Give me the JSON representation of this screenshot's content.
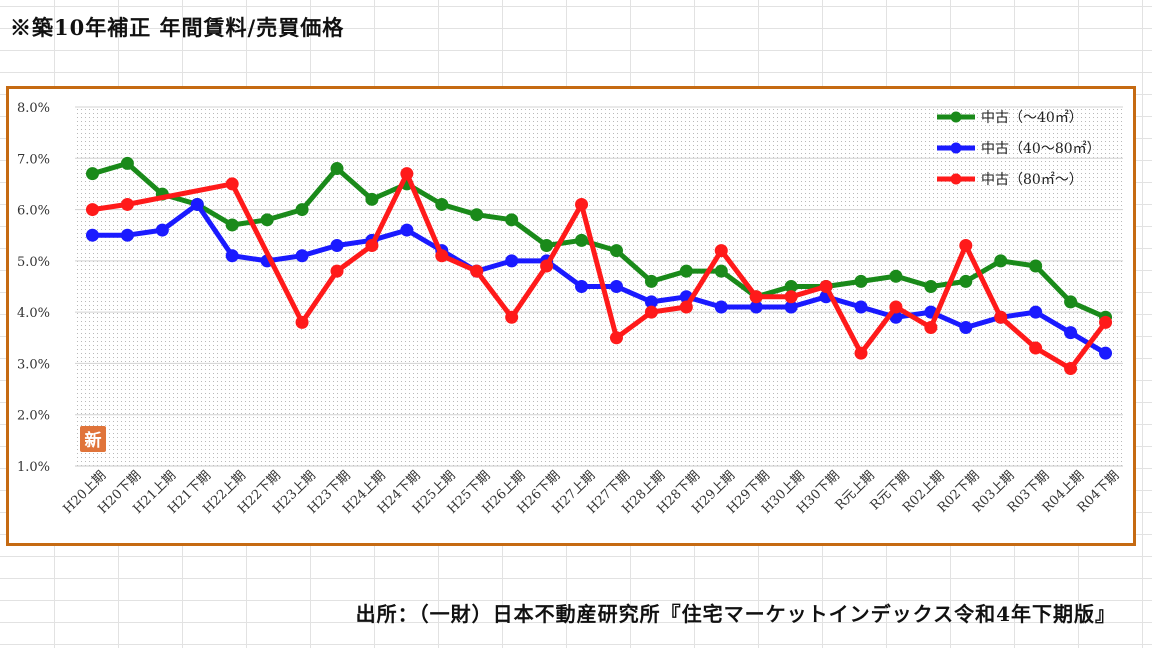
{
  "title": "※築10年補正 年間賃料/売買価格",
  "source": "出所：（一財）日本不動産研究所『住宅マーケットインデックス令和4年下期版』",
  "badge": {
    "text": "新",
    "color": "#e0743a"
  },
  "colors": {
    "frame": "#c56a12",
    "green": "#1a8a1a",
    "blue": "#1a1aff",
    "red": "#ff1a1a"
  },
  "chart_data": {
    "type": "line",
    "categories": [
      "H20上期",
      "H20下期",
      "H21上期",
      "H21下期",
      "H22上期",
      "H22下期",
      "H23上期",
      "H23下期",
      "H24上期",
      "H24下期",
      "H25上期",
      "H25下期",
      "H26上期",
      "H26下期",
      "H27上期",
      "H27下期",
      "H28上期",
      "H28下期",
      "H29上期",
      "H29下期",
      "H30上期",
      "H30下期",
      "R元上期",
      "R元下期",
      "R02上期",
      "R02下期",
      "R03上期",
      "R03下期",
      "R04上期",
      "R04下期"
    ],
    "series": [
      {
        "name": "中古（～40㎡）",
        "color": "#1a8a1a",
        "values": [
          6.7,
          6.9,
          6.3,
          6.1,
          5.7,
          5.8,
          6.0,
          6.8,
          6.2,
          6.5,
          6.1,
          5.9,
          5.8,
          5.3,
          5.4,
          5.2,
          4.6,
          4.8,
          4.8,
          4.3,
          4.5,
          4.5,
          4.6,
          4.7,
          4.5,
          4.6,
          5.0,
          4.9,
          4.2,
          3.9
        ]
      },
      {
        "name": "中古（40～80㎡）",
        "color": "#1a1aff",
        "values": [
          5.5,
          5.5,
          5.6,
          6.1,
          5.1,
          5.0,
          5.1,
          5.3,
          5.4,
          5.6,
          5.2,
          4.8,
          5.0,
          5.0,
          4.5,
          4.5,
          4.2,
          4.3,
          4.1,
          4.1,
          4.1,
          4.3,
          4.1,
          3.9,
          4.0,
          3.7,
          3.9,
          4.0,
          3.6,
          3.2
        ]
      },
      {
        "name": "中古（80㎡～）",
        "color": "#ff1a1a",
        "values": [
          6.0,
          6.1,
          null,
          null,
          6.5,
          null,
          3.8,
          4.8,
          5.3,
          6.7,
          5.1,
          4.8,
          3.9,
          4.9,
          6.1,
          3.5,
          4.0,
          4.1,
          5.2,
          4.3,
          4.3,
          4.5,
          3.2,
          4.1,
          3.7,
          5.3,
          3.9,
          3.3,
          2.9,
          3.8
        ]
      }
    ],
    "yticks": [
      "1.0%",
      "2.0%",
      "3.0%",
      "4.0%",
      "5.0%",
      "6.0%",
      "7.0%",
      "8.0%"
    ],
    "ylim": [
      1.0,
      8.0
    ],
    "y_unit": "%",
    "grid": true,
    "legend_position": "top-right"
  }
}
